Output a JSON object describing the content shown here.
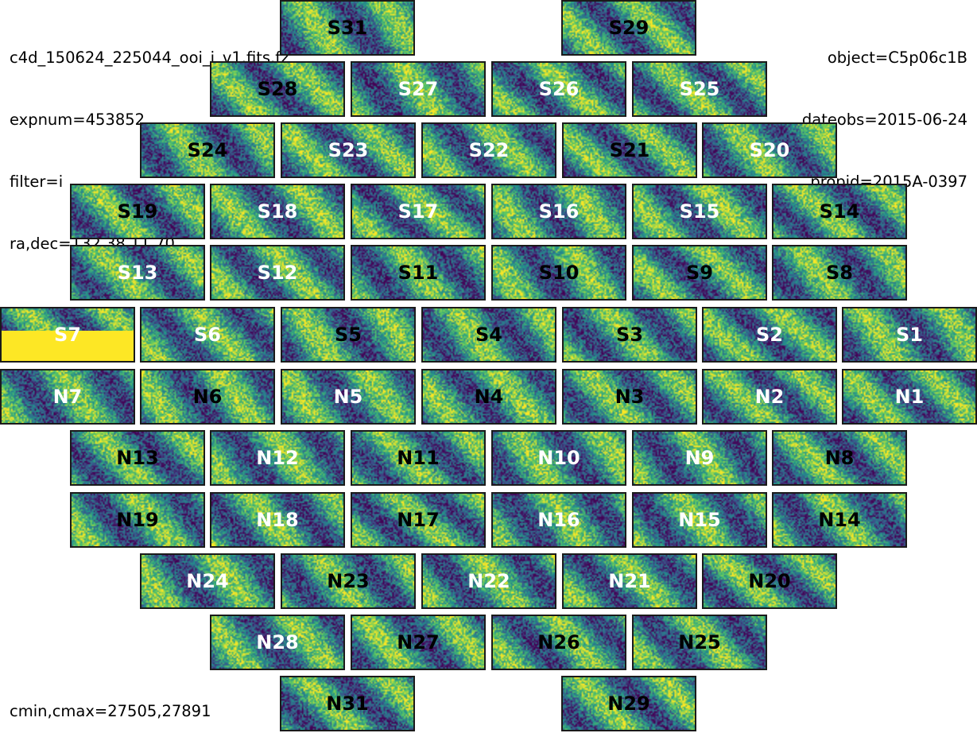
{
  "header_left": {
    "filename": "c4d_150624_225044_ooi_i_v1.fits.fz",
    "expnum": "expnum=453852",
    "filter": "filter=i",
    "radec": "ra,dec=132.38,11.70"
  },
  "header_right": {
    "object": "object=C5p06c1B",
    "dateobs": "dateobs=2015-06-24",
    "propid": "propid=2015A-0397"
  },
  "footer": {
    "cminmax": "cmin,cmax=27505,27891"
  },
  "colors": {
    "low": "#440154",
    "mid": "#21918c",
    "high": "#fde725"
  },
  "ccds": [
    {
      "name": "S31",
      "label_color": "black"
    },
    {
      "name": "S29",
      "label_color": "black"
    },
    {
      "name": "S28",
      "label_color": "black"
    },
    {
      "name": "S27",
      "label_color": "white"
    },
    {
      "name": "S26",
      "label_color": "white"
    },
    {
      "name": "S25",
      "label_color": "white"
    },
    {
      "name": "S24",
      "label_color": "black"
    },
    {
      "name": "S23",
      "label_color": "white"
    },
    {
      "name": "S22",
      "label_color": "white"
    },
    {
      "name": "S21",
      "label_color": "black"
    },
    {
      "name": "S20",
      "label_color": "white"
    },
    {
      "name": "S19",
      "label_color": "black"
    },
    {
      "name": "S18",
      "label_color": "white"
    },
    {
      "name": "S17",
      "label_color": "white"
    },
    {
      "name": "S16",
      "label_color": "white"
    },
    {
      "name": "S15",
      "label_color": "white"
    },
    {
      "name": "S14",
      "label_color": "black"
    },
    {
      "name": "S13",
      "label_color": "white"
    },
    {
      "name": "S12",
      "label_color": "white"
    },
    {
      "name": "S11",
      "label_color": "black"
    },
    {
      "name": "S10",
      "label_color": "black"
    },
    {
      "name": "S9",
      "label_color": "black"
    },
    {
      "name": "S8",
      "label_color": "black"
    },
    {
      "name": "S7",
      "label_color": "white"
    },
    {
      "name": "S6",
      "label_color": "white"
    },
    {
      "name": "S5",
      "label_color": "black"
    },
    {
      "name": "S4",
      "label_color": "black"
    },
    {
      "name": "S3",
      "label_color": "black"
    },
    {
      "name": "S2",
      "label_color": "white"
    },
    {
      "name": "S1",
      "label_color": "white"
    },
    {
      "name": "N7",
      "label_color": "white"
    },
    {
      "name": "N6",
      "label_color": "black"
    },
    {
      "name": "N5",
      "label_color": "white"
    },
    {
      "name": "N4",
      "label_color": "black"
    },
    {
      "name": "N3",
      "label_color": "black"
    },
    {
      "name": "N2",
      "label_color": "white"
    },
    {
      "name": "N1",
      "label_color": "white"
    },
    {
      "name": "N13",
      "label_color": "black"
    },
    {
      "name": "N12",
      "label_color": "white"
    },
    {
      "name": "N11",
      "label_color": "black"
    },
    {
      "name": "N10",
      "label_color": "white"
    },
    {
      "name": "N9",
      "label_color": "white"
    },
    {
      "name": "N8",
      "label_color": "black"
    },
    {
      "name": "N19",
      "label_color": "black"
    },
    {
      "name": "N18",
      "label_color": "white"
    },
    {
      "name": "N17",
      "label_color": "black"
    },
    {
      "name": "N16",
      "label_color": "white"
    },
    {
      "name": "N15",
      "label_color": "white"
    },
    {
      "name": "N14",
      "label_color": "black"
    },
    {
      "name": "N24",
      "label_color": "white"
    },
    {
      "name": "N23",
      "label_color": "black"
    },
    {
      "name": "N22",
      "label_color": "white"
    },
    {
      "name": "N21",
      "label_color": "white"
    },
    {
      "name": "N20",
      "label_color": "black"
    },
    {
      "name": "N28",
      "label_color": "white"
    },
    {
      "name": "N27",
      "label_color": "black"
    },
    {
      "name": "N26",
      "label_color": "black"
    },
    {
      "name": "N25",
      "label_color": "black"
    },
    {
      "name": "N31",
      "label_color": "black"
    },
    {
      "name": "N29",
      "label_color": "black"
    }
  ]
}
